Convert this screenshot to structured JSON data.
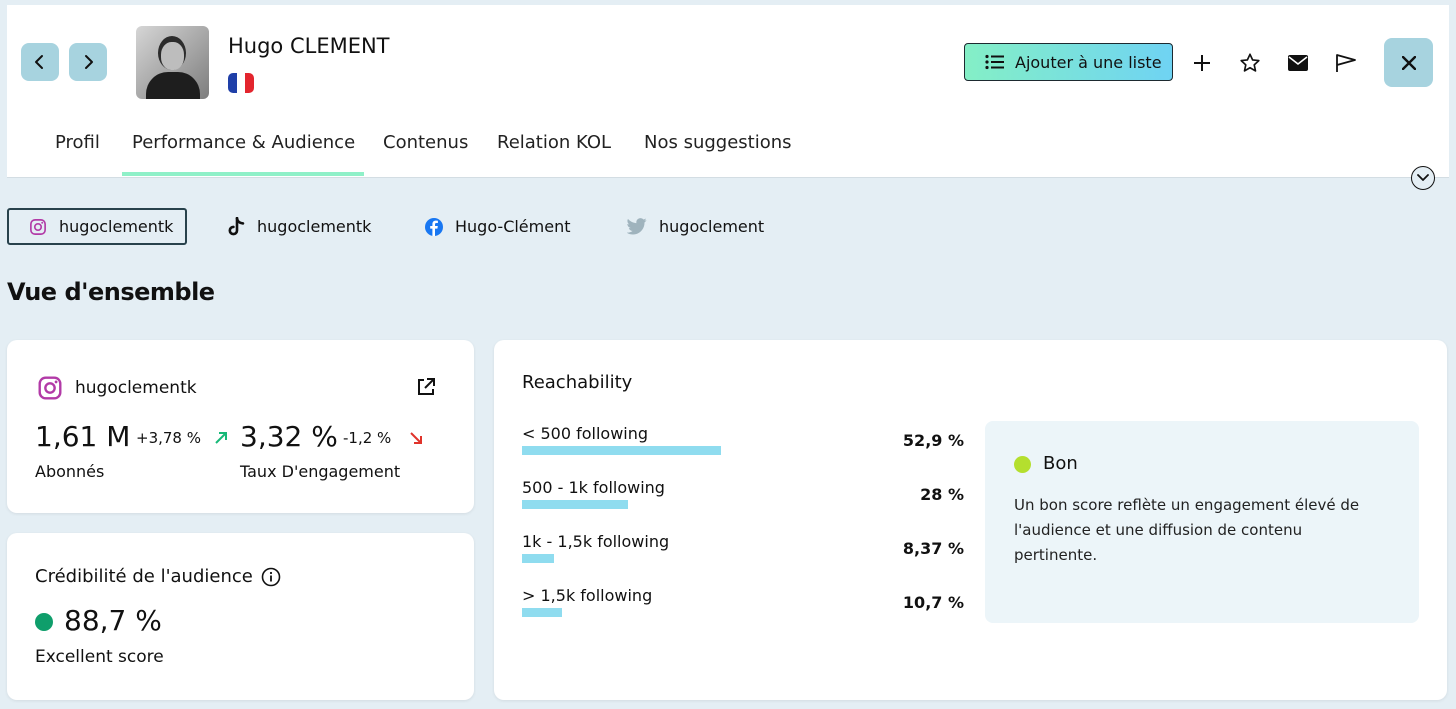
{
  "profile": {
    "name": "Hugo CLEMENT",
    "flag_colors": [
      "#1f3fa8",
      "#ffffff",
      "#e3252e"
    ]
  },
  "header": {
    "add_to_list_label": "Ajouter à une liste"
  },
  "tabs": [
    {
      "label": "Profil"
    },
    {
      "label": "Performance & Audience",
      "active": true
    },
    {
      "label": "Contenus"
    },
    {
      "label": "Relation KOL"
    },
    {
      "label": "Nos suggestions"
    }
  ],
  "socials": [
    {
      "network": "instagram-icon",
      "handle": "hugoclementk",
      "active": true
    },
    {
      "network": "tiktok-icon",
      "handle": "hugoclementk"
    },
    {
      "network": "facebook-icon",
      "handle": "Hugo-Clément"
    },
    {
      "network": "twitter-icon",
      "handle": "hugoclement"
    }
  ],
  "overview": {
    "title": "Vue d'ensemble",
    "account": {
      "handle": "hugoclementk",
      "followers": "1,61 M",
      "followers_delta": "+3,78 %",
      "followers_label": "Abonnés",
      "engagement": "3,32 %",
      "engagement_delta": "-1,2 %",
      "engagement_label": "Taux D'engagement"
    },
    "credibility": {
      "title": "Crédibilité de l'audience",
      "value": "88,7 %",
      "label": "Excellent score"
    },
    "reachability": {
      "title": "Reachability",
      "rows": [
        {
          "label": "< 500 following",
          "value": "52,9 %",
          "fraction": 0.529
        },
        {
          "label": "500 - 1k following",
          "value": "28 %",
          "fraction": 0.28
        },
        {
          "label": "1k - 1,5k following",
          "value": "8,37 %",
          "fraction": 0.0837
        },
        {
          "label": "> 1,5k following",
          "value": "10,7 %",
          "fraction": 0.107
        }
      ],
      "score_label": "Bon",
      "score_description": "Un bon score reflète un engagement élevé de l'audience et une diffusion de contenu pertinente."
    }
  },
  "colors": {
    "accent_teal": "#a7d3df",
    "tab_underline": "#8ff0c8",
    "bar": "#8fdcef",
    "up_arrow": "#17b978",
    "down_arrow": "#e0332b",
    "credibility_dot": "#0f9e6b",
    "score_dot": "#b4df2e"
  }
}
